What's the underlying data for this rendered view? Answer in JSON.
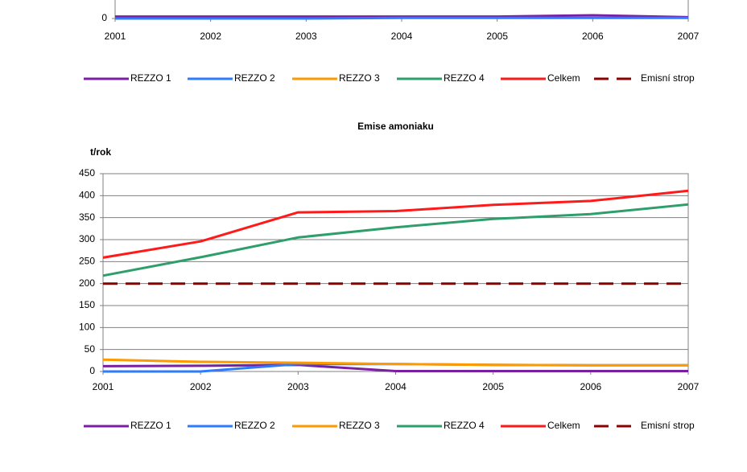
{
  "chart_data": [
    {
      "type": "line",
      "x": [
        2001,
        2002,
        2003,
        2004,
        2005,
        2006,
        2007
      ],
      "xlim": [
        2001,
        2007
      ],
      "xticks": [
        2001,
        2002,
        2003,
        2004,
        2005,
        2006,
        2007
      ],
      "ylim": [
        0,
        40
      ],
      "yticks": [
        0
      ],
      "grid": false,
      "series": [
        {
          "name": "REZZO 1",
          "color": "#7b1fa2",
          "values": [
            0.3,
            0.3,
            0.3,
            0.3,
            0.3,
            0.5,
            0.2
          ]
        },
        {
          "name": "REZZO 2",
          "color": "#2e7bff",
          "values": [
            0,
            0,
            0,
            0.1,
            0.1,
            0.1,
            0.1
          ]
        },
        {
          "name": "REZZO 3",
          "color": "#ff9900",
          "values": [
            null,
            null,
            null,
            null,
            null,
            null,
            null
          ]
        },
        {
          "name": "REZZO 4",
          "color": "#2e9e6b",
          "values": [
            null,
            null,
            null,
            null,
            null,
            null,
            null
          ]
        },
        {
          "name": "Celkem",
          "color": "#ff1a1a",
          "values": [
            null,
            null,
            null,
            null,
            null,
            null,
            null
          ]
        },
        {
          "name": "Emisní strop",
          "color": "#8b0000",
          "dashed": true,
          "values": [
            null,
            null,
            null,
            null,
            null,
            null,
            null
          ]
        }
      ]
    },
    {
      "type": "line",
      "title": "Emise amoniaku",
      "y_label": "t/rok",
      "x": [
        2001,
        2002,
        2003,
        2004,
        2005,
        2006,
        2007
      ],
      "xlim": [
        2001,
        2007
      ],
      "xticks": [
        2001,
        2002,
        2003,
        2004,
        2005,
        2006,
        2007
      ],
      "ylim": [
        0,
        450
      ],
      "yticks": [
        0,
        50,
        100,
        150,
        200,
        250,
        300,
        350,
        400,
        450
      ],
      "grid": true,
      "series": [
        {
          "name": "REZZO 1",
          "color": "#7b1fa2",
          "values": [
            12,
            13,
            15,
            1,
            1,
            1,
            1
          ]
        },
        {
          "name": "REZZO 2",
          "color": "#2e7bff",
          "values": [
            0,
            0,
            17,
            17,
            15,
            14,
            14
          ]
        },
        {
          "name": "REZZO 3",
          "color": "#ff9900",
          "values": [
            27,
            22,
            20,
            17,
            15,
            14,
            14
          ]
        },
        {
          "name": "REZZO 4",
          "color": "#2e9e6b",
          "values": [
            218,
            260,
            305,
            328,
            347,
            358,
            380
          ]
        },
        {
          "name": "Celkem",
          "color": "#ff1a1a",
          "values": [
            259,
            296,
            362,
            365,
            379,
            388,
            411
          ]
        },
        {
          "name": "Emisní strop",
          "color": "#8b0000",
          "dashed": true,
          "values": [
            200,
            200,
            200,
            200,
            200,
            200,
            200
          ]
        }
      ]
    }
  ]
}
